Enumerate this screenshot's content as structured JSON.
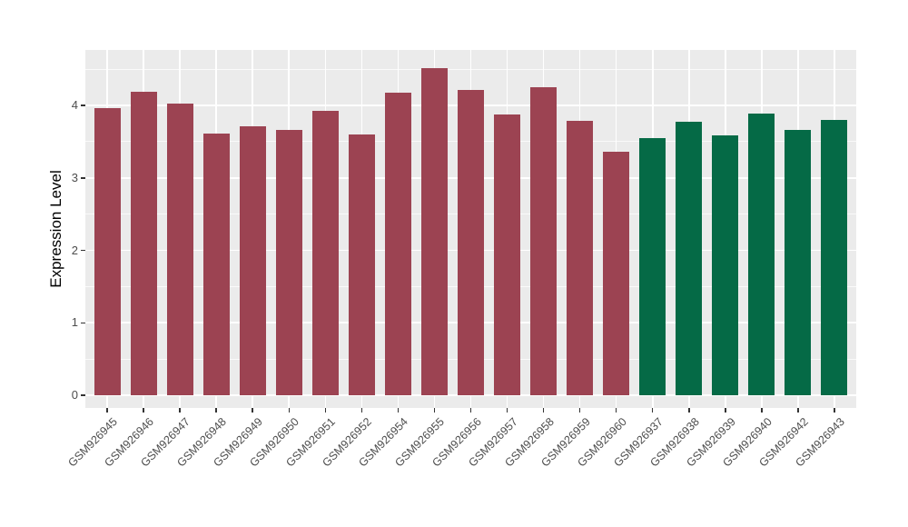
{
  "chart_data": {
    "type": "bar",
    "title": "",
    "xlabel": "",
    "ylabel": "Expression Level",
    "ylim": [
      0,
      4.77
    ],
    "yticks": [
      0,
      1,
      2,
      3,
      4
    ],
    "y_minor_ticks": [
      0.5,
      1.5,
      2.5,
      3.5,
      4.5
    ],
    "grid": true,
    "legend": false,
    "panel_background": "#EBEBEB",
    "gridline_color": "#FFFFFF",
    "axis_text_color": "#4D4D4D",
    "axis_title_color": "#000000",
    "categories": [
      "GSM926945",
      "GSM926946",
      "GSM926947",
      "GSM926948",
      "GSM926949",
      "GSM926950",
      "GSM926951",
      "GSM926952",
      "GSM926954",
      "GSM926955",
      "GSM926956",
      "GSM926957",
      "GSM926958",
      "GSM926959",
      "GSM926960",
      "GSM926937",
      "GSM926938",
      "GSM926939",
      "GSM926940",
      "GSM926942",
      "GSM926943"
    ],
    "values": [
      3.96,
      4.19,
      4.02,
      3.61,
      3.71,
      3.66,
      3.92,
      3.6,
      4.17,
      4.52,
      4.21,
      3.87,
      4.25,
      3.79,
      3.36,
      3.55,
      3.78,
      3.58,
      3.89,
      3.66,
      3.8
    ],
    "groups": [
      "maroon",
      "maroon",
      "maroon",
      "maroon",
      "maroon",
      "maroon",
      "maroon",
      "maroon",
      "maroon",
      "maroon",
      "maroon",
      "maroon",
      "maroon",
      "maroon",
      "maroon",
      "green",
      "green",
      "green",
      "green",
      "green",
      "green"
    ],
    "group_colors": {
      "maroon": "#9C4352",
      "green": "#056A46"
    }
  }
}
